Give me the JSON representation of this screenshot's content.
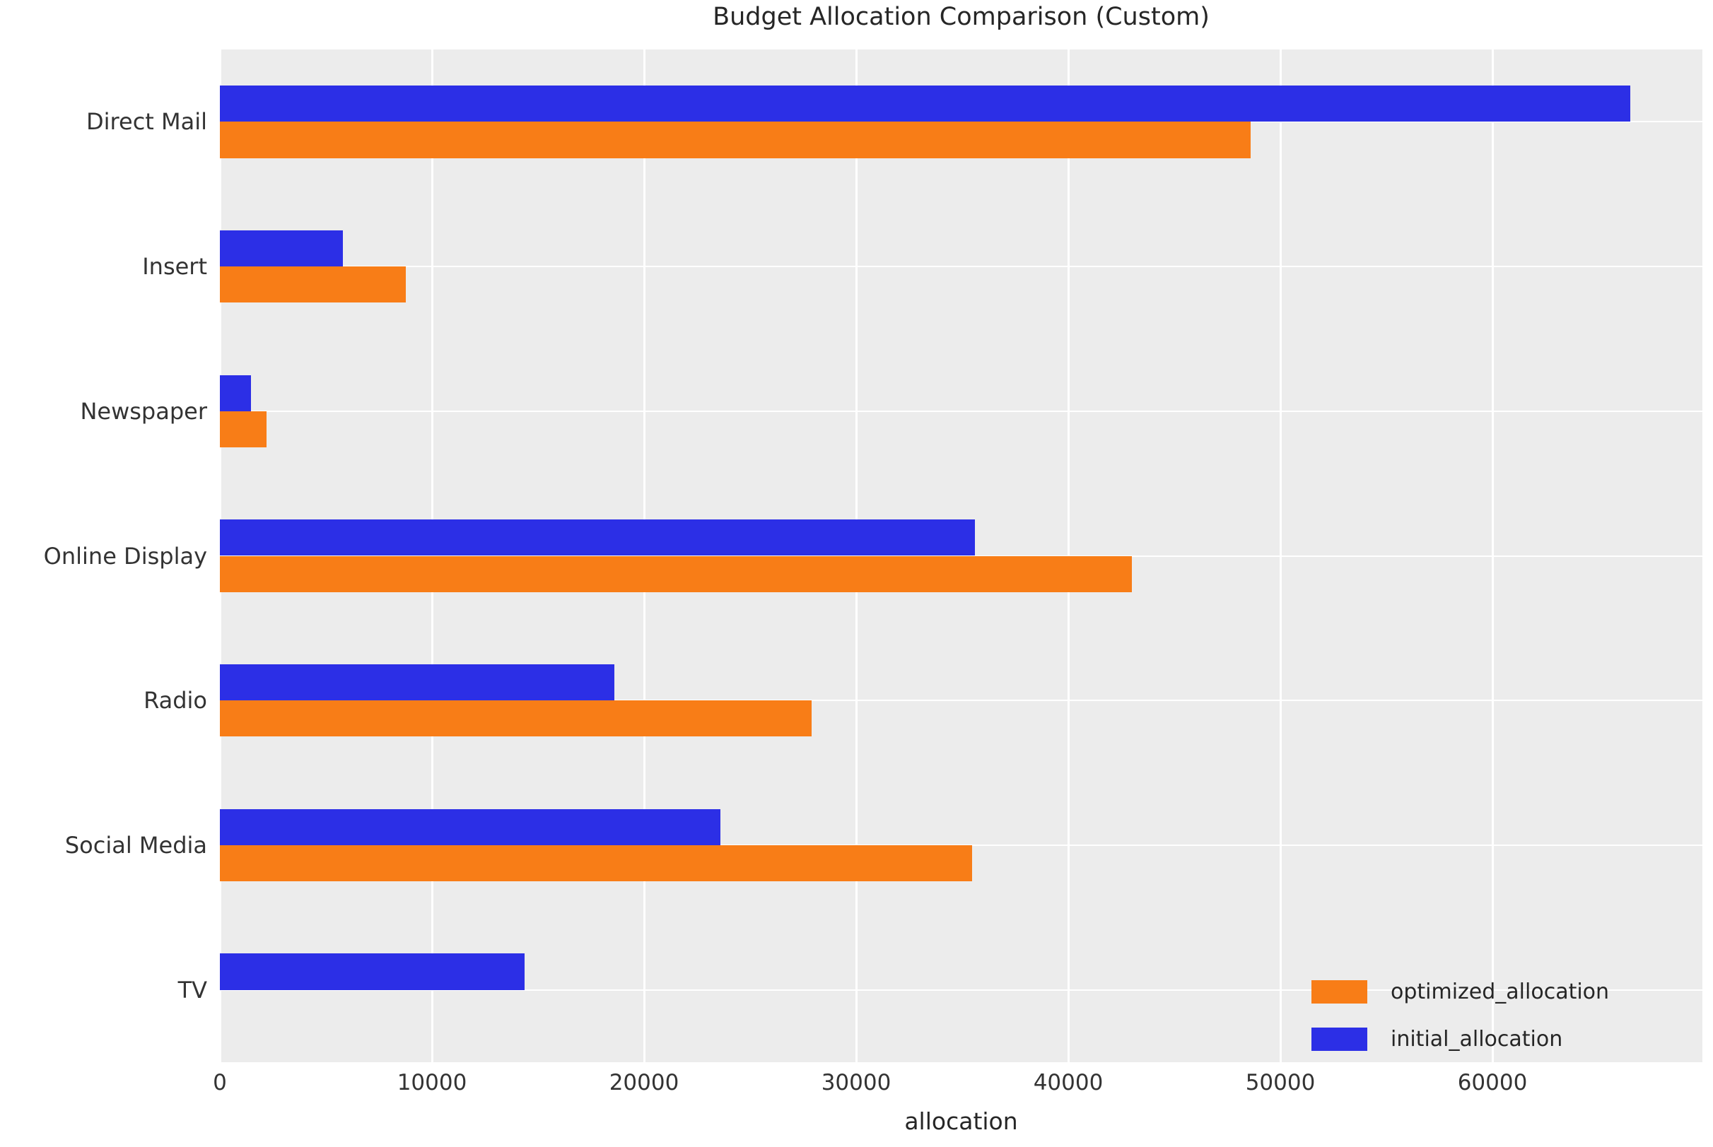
{
  "title": "Budget Allocation Comparison (Custom)",
  "colors": {
    "optimized": "#f87d17",
    "initial": "#2c2fe6",
    "plot_background": "#ececec",
    "gridline": "#ffffff",
    "text": "#262626"
  },
  "chart_data": {
    "type": "bar",
    "orientation": "horizontal",
    "title": "Budget Allocation Comparison (Custom)",
    "xlabel": "allocation",
    "ylabel": "",
    "categories": [
      "Direct Mail",
      "Insert",
      "Newspaper",
      "Online Display",
      "Radio",
      "Social Media",
      "TV"
    ],
    "series": [
      {
        "name": "optimized_allocation",
        "color": "#f87d17",
        "values": [
          48600,
          8750,
          2200,
          43000,
          27900,
          35450,
          0
        ]
      },
      {
        "name": "initial_allocation",
        "color": "#2c2fe6",
        "values": [
          66500,
          5800,
          1450,
          35600,
          18600,
          23600,
          14370
        ]
      }
    ],
    "x_ticks": [
      0,
      10000,
      20000,
      30000,
      40000,
      50000,
      60000
    ],
    "x_tick_labels": [
      "0",
      "10000",
      "20000",
      "30000",
      "40000",
      "50000",
      "60000"
    ],
    "xlim": [
      0,
      69900
    ],
    "grid": true,
    "legend_position": "lower right",
    "bar_order_note": "within each category group the initial_allocation bar is drawn above the optimized_allocation bar"
  }
}
